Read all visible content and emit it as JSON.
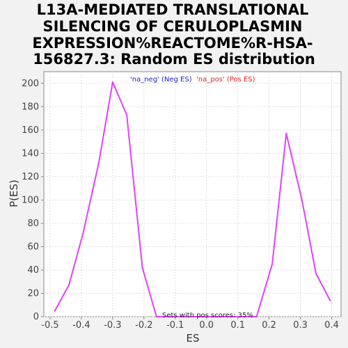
{
  "chart_data": {
    "type": "line",
    "title_lines": [
      "L13A-MEDIATED TRANSLATIONAL",
      "SILENCING OF CERULOPLASMIN",
      "EXPRESSION%REACTOME%R-HSA-",
      "156827.3: Random ES distribution"
    ],
    "xlabel": "ES",
    "ylabel": "P(ES)",
    "xlim": [
      -0.52,
      0.43
    ],
    "ylim": [
      0,
      210
    ],
    "x_ticks": [
      -0.5,
      -0.4,
      -0.3,
      -0.2,
      -0.1,
      0.0,
      0.1,
      0.2,
      0.3,
      0.4
    ],
    "x_tick_labels": [
      "-0.5",
      "-0.4",
      "-0.3",
      "-0.2",
      "-0.1",
      "0.0",
      "0.1",
      "0.2",
      "0.3",
      "0.4"
    ],
    "y_ticks": [
      0,
      20,
      40,
      60,
      80,
      100,
      120,
      140,
      160,
      180,
      200
    ],
    "y_tick_labels": [
      "0",
      "20",
      "40",
      "60",
      "80",
      "100",
      "120",
      "140",
      "160",
      "180",
      "200"
    ],
    "grid": true,
    "legend_position": "top-center",
    "legend": [
      {
        "label": "'na_neg' (Neg ES)",
        "color": "#2222cc"
      },
      {
        "label": "'na_pos' (Pos ES)",
        "color": "#dd2222"
      }
    ],
    "annotation": "Sets with pos scores: 35%",
    "series": [
      {
        "color": "#e040fb",
        "x": [
          -0.485,
          -0.44,
          -0.395,
          -0.345,
          -0.3,
          -0.255,
          -0.205,
          -0.16,
          -0.115,
          0.16,
          0.21,
          0.255,
          0.305,
          0.35,
          0.395
        ],
        "y": [
          5,
          27,
          71,
          131,
          201,
          173,
          42,
          0,
          0,
          0,
          45,
          157,
          100,
          37,
          14
        ]
      }
    ]
  }
}
